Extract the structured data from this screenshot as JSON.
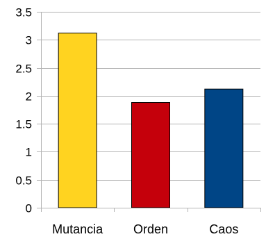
{
  "chart_data": {
    "type": "bar",
    "categories": [
      "Mutancia",
      "Orden",
      "Caos"
    ],
    "values": [
      3.12,
      1.88,
      2.12
    ],
    "colors": [
      "#ffd320",
      "#c5000b",
      "#004586"
    ],
    "ylim": [
      0,
      3.5
    ],
    "yticks": [
      "0",
      "0.5",
      "1",
      "1.5",
      "2",
      "2.5",
      "3",
      "3.5"
    ],
    "grid": true,
    "legend": "none"
  }
}
